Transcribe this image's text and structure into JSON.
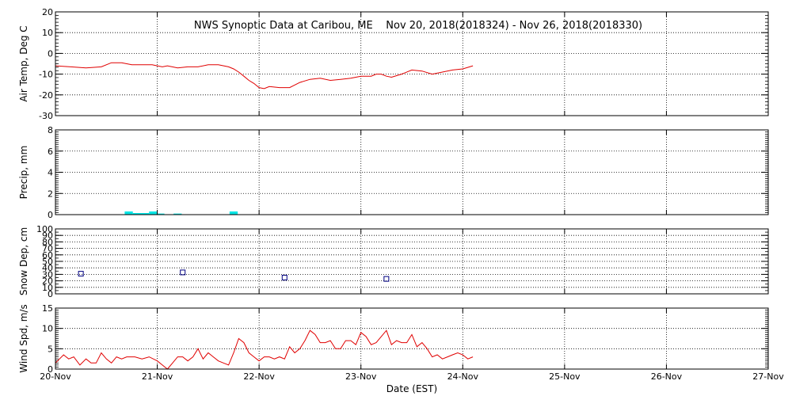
{
  "title": "NWS Synoptic Data at Caribou, ME    Nov 20, 2018(2018324) - Nov 26, 2018(2018330)",
  "xlabel": "Date (EST)",
  "x_ticks": [
    "20-Nov",
    "21-Nov",
    "22-Nov",
    "23-Nov",
    "24-Nov",
    "25-Nov",
    "26-Nov",
    "27-Nov"
  ],
  "colors": {
    "temp": "#e00000",
    "precip": "#00e5e5",
    "snow": "#000080",
    "wind": "#e00000"
  },
  "chart_data": [
    {
      "type": "line",
      "ylabel": "Air Temp, Deg C",
      "xlim": [
        0,
        7
      ],
      "ylim": [
        -30,
        20
      ],
      "y_ticks": [
        -30,
        -20,
        -10,
        0,
        10,
        20
      ],
      "series": [
        {
          "x": [
            0,
            0.15,
            0.3,
            0.45,
            0.55,
            0.65,
            0.75,
            0.85,
            0.95,
            1.0,
            1.05,
            1.1,
            1.2,
            1.3,
            1.4,
            1.5,
            1.6,
            1.7,
            1.75,
            1.8,
            1.85,
            1.9,
            1.95,
            2.0,
            2.05,
            2.1,
            2.2,
            2.3,
            2.4,
            2.5,
            2.6,
            2.7,
            2.8,
            2.9,
            3.0,
            3.1,
            3.15,
            3.2,
            3.25,
            3.3,
            3.4,
            3.5,
            3.6,
            3.7,
            3.8,
            3.9,
            4.0,
            4.1
          ],
          "y": [
            -6,
            -6.5,
            -7,
            -6.5,
            -4.5,
            -4.5,
            -5.5,
            -5.5,
            -5.5,
            -6,
            -6.5,
            -6,
            -7,
            -6.5,
            -6.5,
            -5.5,
            -5.5,
            -6.5,
            -7.5,
            -9,
            -11,
            -13,
            -14.5,
            -16.5,
            -17,
            -16,
            -16.5,
            -16.5,
            -14,
            -12.5,
            -12,
            -13,
            -12.5,
            -12,
            -11,
            -11,
            -10,
            -10,
            -11,
            -11.5,
            -10,
            -8,
            -8.5,
            -10,
            -9,
            -8,
            -7.5,
            -6
          ]
        }
      ]
    },
    {
      "type": "bar",
      "ylabel": "Precip, mm",
      "xlim": [
        0,
        7
      ],
      "ylim": [
        0,
        8
      ],
      "y_ticks": [
        0,
        2,
        4,
        6,
        8
      ],
      "bar_width_days": 0.08,
      "series": [
        {
          "x": [
            0.72,
            0.8,
            0.88,
            0.96,
            1.03,
            1.2,
            1.75
          ],
          "values": [
            0.3,
            0.15,
            0.15,
            0.3,
            0.1,
            0.1,
            0.3
          ]
        }
      ]
    },
    {
      "type": "scatter",
      "ylabel": "Snow Dep, cm",
      "xlim": [
        0,
        7
      ],
      "ylim": [
        0,
        100
      ],
      "y_ticks": [
        0,
        10,
        20,
        30,
        40,
        50,
        60,
        70,
        80,
        90,
        100
      ],
      "series": [
        {
          "x": [
            0.25,
            1.25,
            2.25,
            3.25
          ],
          "y": [
            31,
            33,
            25,
            23
          ]
        }
      ]
    },
    {
      "type": "line",
      "ylabel": "Wind Spd, m/s",
      "xlim": [
        0,
        7
      ],
      "ylim": [
        0,
        15
      ],
      "y_ticks": [
        0,
        5,
        10,
        15
      ],
      "series": [
        {
          "x": [
            0,
            0.08,
            0.13,
            0.18,
            0.24,
            0.3,
            0.35,
            0.4,
            0.45,
            0.5,
            0.55,
            0.6,
            0.65,
            0.7,
            0.78,
            0.85,
            0.92,
            1.0,
            1.05,
            1.1,
            1.15,
            1.2,
            1.25,
            1.3,
            1.35,
            1.4,
            1.45,
            1.5,
            1.55,
            1.6,
            1.65,
            1.7,
            1.75,
            1.8,
            1.85,
            1.9,
            1.95,
            2.0,
            2.05,
            2.1,
            2.15,
            2.2,
            2.25,
            2.3,
            2.35,
            2.4,
            2.45,
            2.5,
            2.55,
            2.6,
            2.65,
            2.7,
            2.75,
            2.8,
            2.85,
            2.9,
            2.95,
            3.0,
            3.05,
            3.1,
            3.15,
            3.2,
            3.25,
            3.3,
            3.35,
            3.4,
            3.45,
            3.5,
            3.55,
            3.6,
            3.65,
            3.7,
            3.75,
            3.8,
            3.85,
            3.9,
            3.95,
            4.0,
            4.05,
            4.1
          ],
          "y": [
            1.5,
            3.5,
            2.5,
            3,
            1,
            2.5,
            1.5,
            1.5,
            4,
            2.5,
            1.5,
            3,
            2.5,
            3,
            3,
            2.5,
            3,
            2,
            1,
            0,
            1.5,
            3,
            3,
            2,
            3,
            5,
            2.5,
            4,
            3,
            2,
            1.5,
            1,
            4,
            7.5,
            6.5,
            4,
            3,
            2,
            3,
            3,
            2.5,
            3,
            2.5,
            5.5,
            4,
            5,
            7,
            9.5,
            8.5,
            6.5,
            6.5,
            7,
            5,
            5,
            7,
            7,
            6,
            9,
            8,
            6,
            6.5,
            8,
            9.5,
            6,
            7,
            6.5,
            6.5,
            8.5,
            5.5,
            6.5,
            5,
            3,
            3.5,
            2.5,
            3,
            3.5,
            4,
            3.5,
            2.5,
            3
          ]
        }
      ]
    }
  ]
}
